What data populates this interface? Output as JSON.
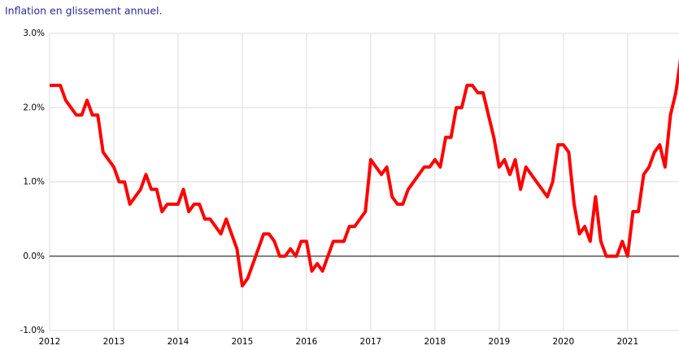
{
  "chart_data": {
    "type": "line",
    "title": "Inflation en glissement annuel.",
    "x": [
      2012,
      2012.083,
      2012.167,
      2012.25,
      2012.333,
      2012.417,
      2012.5,
      2012.583,
      2012.667,
      2012.75,
      2012.833,
      2012.917,
      2013,
      2013.083,
      2013.167,
      2013.25,
      2013.333,
      2013.417,
      2013.5,
      2013.583,
      2013.667,
      2013.75,
      2013.833,
      2013.917,
      2014,
      2014.083,
      2014.167,
      2014.25,
      2014.333,
      2014.417,
      2014.5,
      2014.583,
      2014.667,
      2014.75,
      2014.833,
      2014.917,
      2015,
      2015.083,
      2015.167,
      2015.25,
      2015.333,
      2015.417,
      2015.5,
      2015.583,
      2015.667,
      2015.75,
      2015.833,
      2015.917,
      2016,
      2016.083,
      2016.167,
      2016.25,
      2016.333,
      2016.417,
      2016.5,
      2016.583,
      2016.667,
      2016.75,
      2016.833,
      2016.917,
      2017,
      2017.083,
      2017.167,
      2017.25,
      2017.333,
      2017.417,
      2017.5,
      2017.583,
      2017.667,
      2017.75,
      2017.833,
      2017.917,
      2018,
      2018.083,
      2018.167,
      2018.25,
      2018.333,
      2018.417,
      2018.5,
      2018.583,
      2018.667,
      2018.75,
      2018.833,
      2018.917,
      2019,
      2019.083,
      2019.167,
      2019.25,
      2019.333,
      2019.417,
      2019.5,
      2019.583,
      2019.667,
      2019.75,
      2019.833,
      2019.917,
      2020,
      2020.083,
      2020.167,
      2020.25,
      2020.333,
      2020.417,
      2020.5,
      2020.583,
      2020.667,
      2020.75,
      2020.833,
      2020.917,
      2021,
      2021.083,
      2021.167,
      2021.25,
      2021.333,
      2021.417,
      2021.5,
      2021.583,
      2021.667,
      2021.75,
      2021.833
    ],
    "series": [
      {
        "color": "#ff0000",
        "values": [
          2.3,
          2.3,
          2.3,
          2.1,
          2.0,
          1.9,
          1.9,
          2.1,
          1.9,
          1.9,
          1.4,
          1.3,
          1.2,
          1.0,
          1.0,
          0.7,
          0.8,
          0.9,
          1.1,
          0.9,
          0.9,
          0.6,
          0.7,
          0.7,
          0.7,
          0.9,
          0.6,
          0.7,
          0.7,
          0.5,
          0.5,
          0.4,
          0.3,
          0.5,
          0.3,
          0.1,
          -0.4,
          -0.3,
          -0.1,
          0.1,
          0.3,
          0.3,
          0.2,
          0.0,
          0.0,
          0.1,
          0.0,
          0.2,
          0.2,
          -0.2,
          -0.1,
          -0.2,
          0.0,
          0.2,
          0.2,
          0.2,
          0.4,
          0.4,
          0.5,
          0.6,
          1.3,
          1.2,
          1.1,
          1.2,
          0.8,
          0.7,
          0.7,
          0.9,
          1.0,
          1.1,
          1.2,
          1.2,
          1.3,
          1.2,
          1.6,
          1.6,
          2.0,
          2.0,
          2.3,
          2.3,
          2.2,
          2.2,
          1.9,
          1.6,
          1.2,
          1.3,
          1.1,
          1.3,
          0.9,
          1.2,
          1.1,
          1.0,
          0.9,
          0.8,
          1.0,
          1.5,
          1.5,
          1.4,
          0.7,
          0.3,
          0.4,
          0.2,
          0.8,
          0.2,
          0.0,
          0.0,
          0.0,
          0.2,
          0.0,
          0.6,
          0.6,
          1.1,
          1.2,
          1.4,
          1.5,
          1.2,
          1.9,
          2.2,
          2.7
        ]
      }
    ],
    "xlim": [
      2012,
      2021.8
    ],
    "xticks": [
      2012,
      2013,
      2014,
      2015,
      2016,
      2017,
      2018,
      2019,
      2020,
      2021
    ],
    "ylim": [
      -1,
      3
    ],
    "yticks": [
      {
        "value": -1,
        "label": "-1.0%"
      },
      {
        "value": 0,
        "label": "0.0%"
      },
      {
        "value": 1,
        "label": "1.0%"
      },
      {
        "value": 2,
        "label": "2.0%"
      },
      {
        "value": 3,
        "label": "3.0%"
      }
    ],
    "grid": true
  }
}
